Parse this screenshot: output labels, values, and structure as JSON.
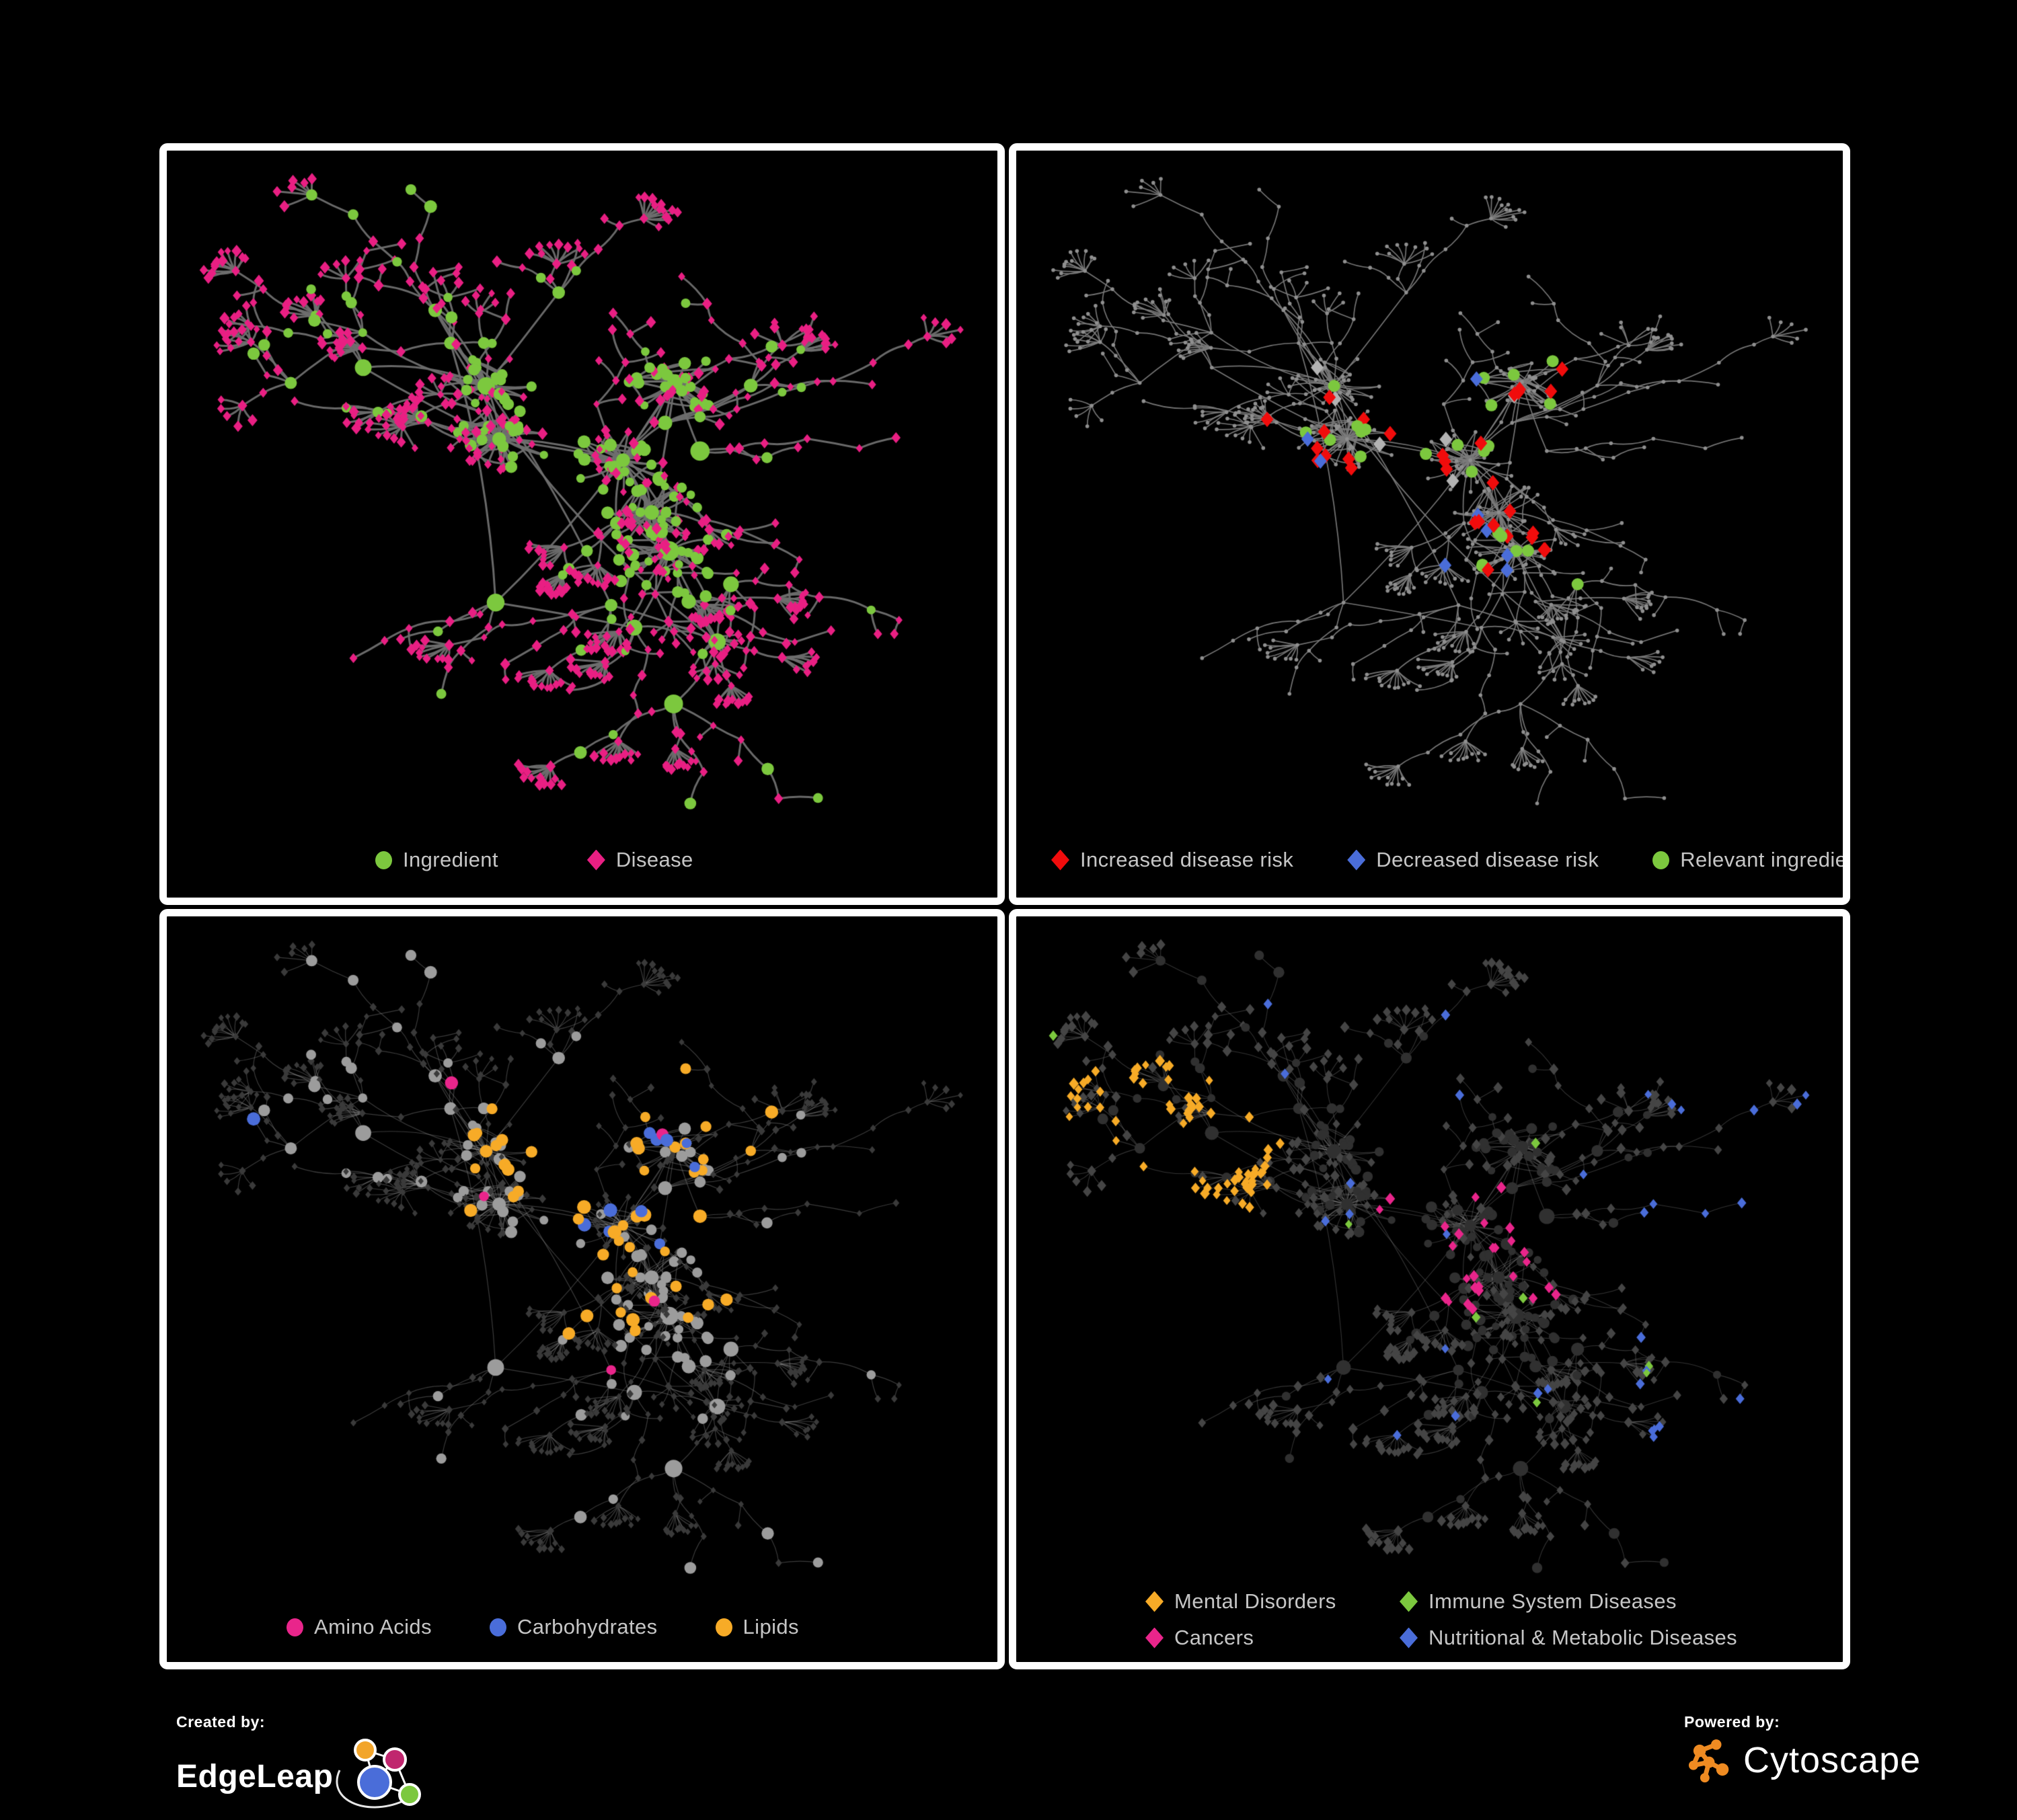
{
  "figure": {
    "background": "#000000",
    "panel_border": "#ffffff",
    "description": "Ingredient–disease association network rendered four ways"
  },
  "network": {
    "type": "network",
    "seed": 1337,
    "hubs": 24,
    "dense_clusters": 6,
    "node_shapes": {
      "ingredient": "circle",
      "disease": "diamond"
    },
    "edge_color_base": "#6f6f6f"
  },
  "panels": [
    {
      "name": "ingredient-disease",
      "legend": [
        {
          "label": "Ingredient",
          "shape": "circle",
          "color": "#7cc83e"
        },
        {
          "label": "Disease",
          "shape": "diamond",
          "color": "#e91f83"
        }
      ],
      "style": {
        "edge": "#6f6f6f",
        "edge_width": 3.0,
        "edge_alpha": 0.95,
        "circle": "#7cc83e",
        "diamond": "#e91f83",
        "circle_r": 7.5,
        "hub_r": 11.5,
        "diamond_s": 7.2
      }
    },
    {
      "name": "disease-risk",
      "legend": [
        {
          "label": "Increased disease risk",
          "shape": "diamond",
          "color": "#f10c0c"
        },
        {
          "label": "Decreased disease risk",
          "shape": "diamond",
          "color": "#4a6dd9"
        },
        {
          "label": "Relevant ingredient",
          "shape": "circle",
          "color": "#7cc83e"
        }
      ],
      "style": {
        "edge": "#7b7b7b",
        "edge_width": 1.7,
        "edge_alpha": 0.95,
        "base": "#8f8f8f",
        "base_r": 2.8,
        "red": "#f10c0c",
        "blue": "#4a6dd9",
        "silver": "#b3b3b3",
        "green": "#7cc83e",
        "red_count": 30,
        "blue_count": 8,
        "silver_count": 6,
        "green_count": 24,
        "hl_diamond_s": 11.5,
        "hl_circle_r": 9
      }
    },
    {
      "name": "ingredient-classes",
      "legend": [
        {
          "label": "Amino Acids",
          "shape": "circle",
          "color": "#e9258b"
        },
        {
          "label": "Carbohydrates",
          "shape": "circle",
          "color": "#4a6dd9"
        },
        {
          "label": "Lipids",
          "shape": "circle",
          "color": "#f7ab27"
        }
      ],
      "style": {
        "edge": "#9a9a9a",
        "edge_width": 1.2,
        "edge_alpha": 0.38,
        "circle": "#9c9c9c",
        "diamond": "#3a3a3a",
        "circle_r": 8,
        "hub_r": 11.5,
        "diamond_s": 5.5,
        "amino": "#e9258b",
        "carb": "#4a6dd9",
        "lipid": "#f7ab27",
        "amino_count": 15,
        "carb_count": 14,
        "lipid_count": 60
      }
    },
    {
      "name": "disease-classes",
      "legend": [
        {
          "label": "Mental Disorders",
          "shape": "diamond",
          "color": "#f7ab27"
        },
        {
          "label": "Immune System Diseases",
          "shape": "diamond",
          "color": "#7cc83e"
        },
        {
          "label": "Cancers",
          "shape": "diamond",
          "color": "#e9258b"
        },
        {
          "label": "Nutritional & Metabolic Diseases",
          "shape": "diamond",
          "color": "#4a6dd9"
        }
      ],
      "style": {
        "edge": "#9a9a9a",
        "edge_width": 1.1,
        "edge_alpha": 0.33,
        "circle": "#303030",
        "diamond": "#454545",
        "circle_r": 7,
        "hub_r": 10,
        "diamond_s": 7.2,
        "mental": "#f7ab27",
        "cancer": "#e9258b",
        "nutri": "#4a6dd9",
        "immune": "#7cc83e",
        "mental_count": 75,
        "cancer_count": 55,
        "nutri_count": 58,
        "immune_count": 8
      }
    }
  ],
  "footer": {
    "created_by_label": "Created by:",
    "created_by_name": "EdgeLeap",
    "powered_by_label": "Powered by:",
    "powered_by_name": "Cytoscape",
    "edgeleap_icon_colors": {
      "orange": "#f2a52b",
      "magenta": "#c0266e",
      "blue": "#4a6dd9",
      "green": "#7cc83e",
      "edges": "#ffffff"
    },
    "cytoscape_icon_color": "#ef8b22"
  }
}
